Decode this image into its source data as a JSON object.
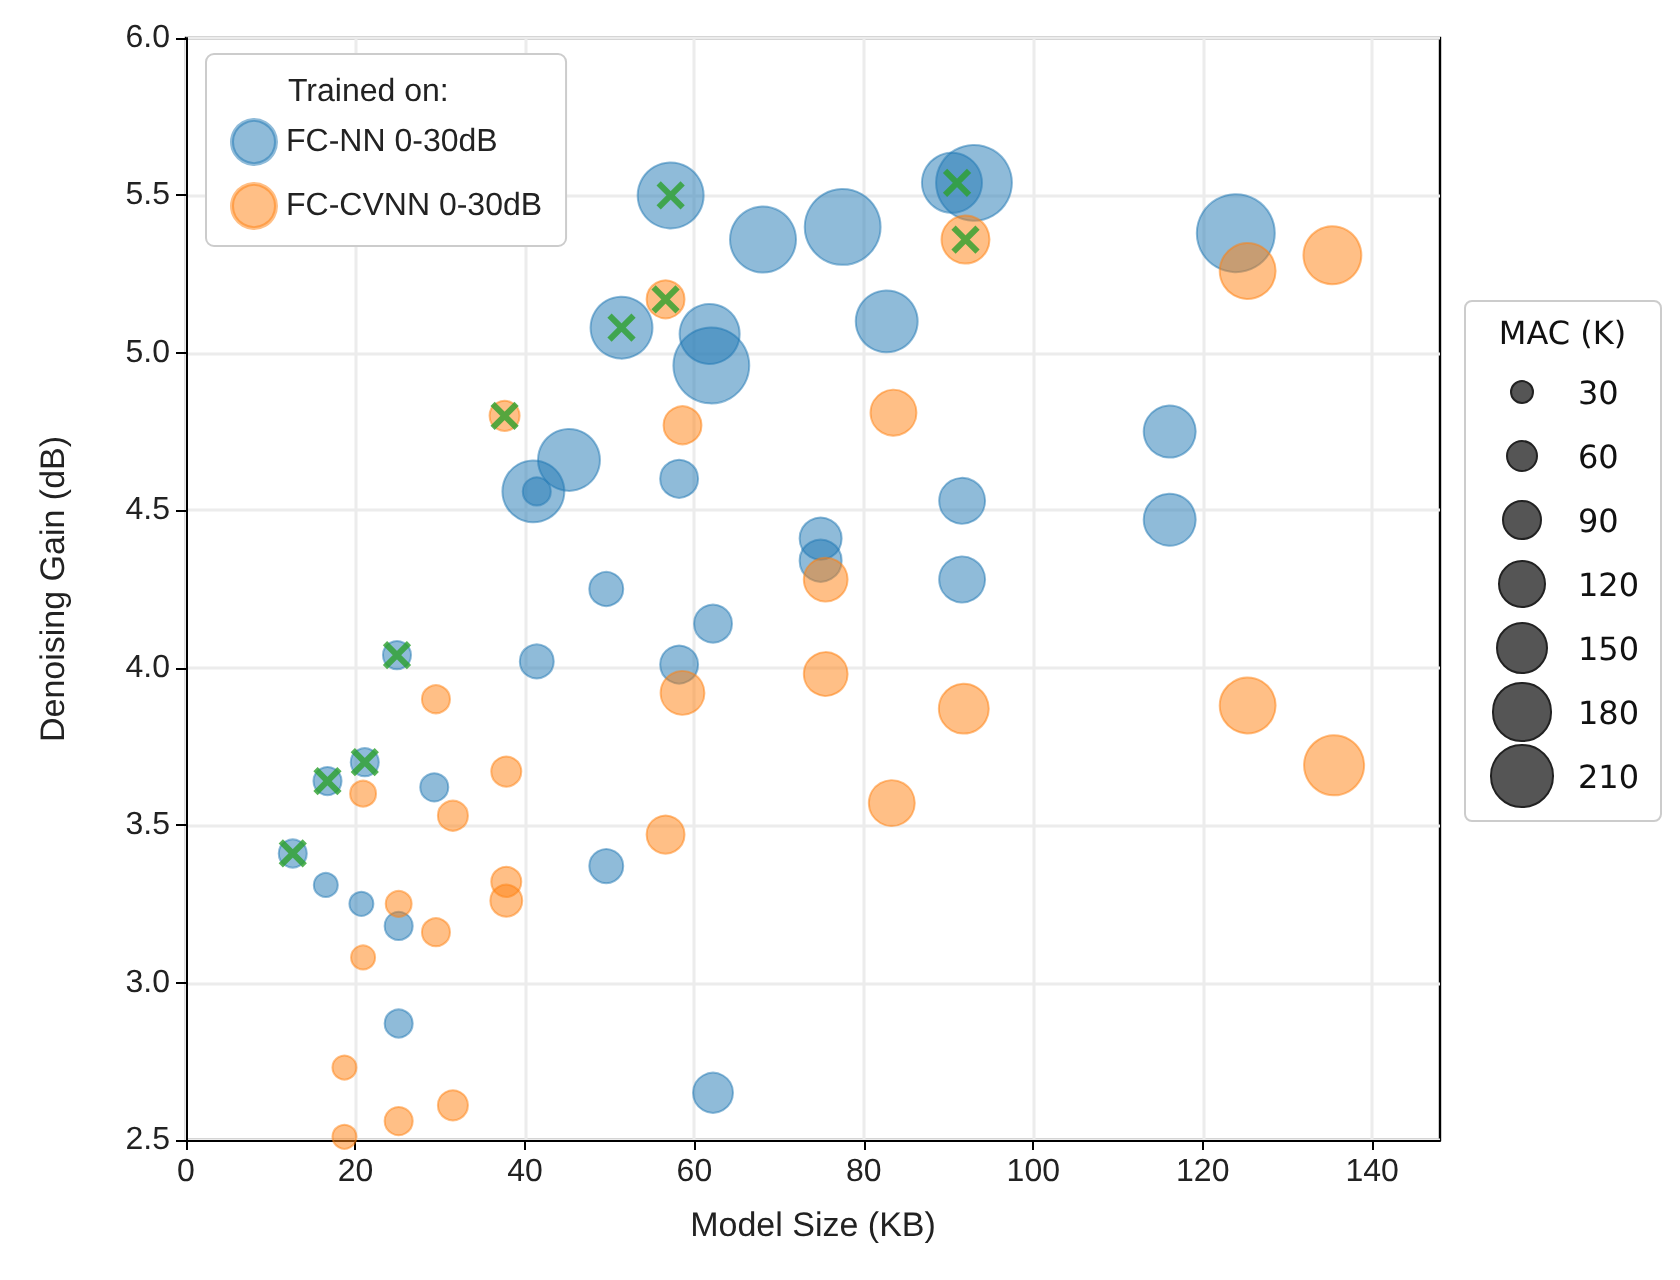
{
  "chart_data": {
    "type": "bubble",
    "xlabel": "Model Size (KB)",
    "ylabel": "Denoising Gain (dB)",
    "legend_title": "Trained on:",
    "annotations": [
      "MAC (K)"
    ],
    "xlim": [
      0,
      148
    ],
    "xticks": [
      0,
      20,
      40,
      60,
      80,
      100,
      120,
      140
    ],
    "ylim": [
      2.5,
      6.0
    ],
    "yticks": [
      2.5,
      {
        "value": 3,
        "label": "3.0"
      },
      3.5,
      {
        "value": 4,
        "label": "4.0"
      },
      4.5,
      {
        "value": 5,
        "label": "5.0"
      },
      5.5,
      {
        "value": 6,
        "label": "6.0"
      }
    ],
    "size_legend": [
      30,
      60,
      90,
      120,
      150,
      180,
      210
    ],
    "grid": true,
    "legend": "top left",
    "series": [
      {
        "name": "FC-NN 0-30dB",
        "color": "#1f77b4",
        "marker": "circle",
        "x": [
          57.2,
          51.4,
          61.8,
          62.0,
          68.1,
          77.5,
          82.7,
          90.4,
          93.0,
          123.9,
          116.1,
          116.1,
          91.6,
          91.6,
          74.9,
          74.9,
          58.2,
          45.2,
          41.0,
          41.4,
          62.2,
          58.2,
          49.6,
          41.4,
          49.6,
          29.3,
          24.9,
          16.7,
          21.1,
          12.6,
          16.5,
          20.7,
          25.1,
          25.1,
          62.2
        ],
        "values": [
          5.5,
          5.08,
          5.06,
          4.96,
          5.36,
          5.4,
          5.1,
          5.54,
          5.54,
          5.38,
          4.75,
          4.47,
          4.53,
          4.28,
          4.41,
          4.34,
          4.6,
          4.66,
          4.56,
          4.56,
          4.14,
          4.01,
          4.25,
          4.02,
          3.37,
          3.62,
          4.04,
          3.64,
          3.7,
          3.41,
          3.31,
          3.25,
          3.18,
          2.87,
          2.65
        ],
        "sizes": [
          227,
          200,
          188,
          300,
          227,
          300,
          200,
          188,
          300,
          317,
          141,
          141,
          110,
          110,
          92,
          92,
          75,
          200,
          200,
          41,
          75,
          75,
          60,
          60,
          60,
          41,
          41,
          41,
          41,
          41,
          30,
          30,
          41,
          41,
          83
        ]
      },
      {
        "name": "FC-CVNN 0-30dB",
        "color": "#ff7f0e",
        "marker": "circle",
        "x": [
          56.6,
          92.0,
          58.6,
          83.5,
          75.5,
          37.6,
          75.5,
          58.6,
          91.8,
          83.3,
          56.6,
          29.5,
          37.8,
          20.9,
          31.5,
          37.8,
          37.8,
          25.1,
          29.5,
          20.9,
          18.7,
          31.5,
          25.1,
          18.7,
          135.3,
          125.3,
          125.3,
          135.5
        ],
        "values": [
          5.17,
          5.36,
          4.77,
          4.81,
          4.28,
          4.8,
          3.98,
          3.92,
          3.87,
          3.57,
          3.47,
          3.9,
          3.67,
          3.6,
          3.53,
          3.32,
          3.26,
          3.25,
          3.16,
          3.08,
          2.73,
          2.61,
          2.56,
          2.51,
          5.31,
          5.26,
          3.88,
          3.69
        ],
        "sizes": [
          75,
          120,
          75,
          110,
          100,
          47,
          100,
          100,
          130,
          110,
          75,
          41,
          47,
          35,
          47,
          47,
          53,
          35,
          41,
          30,
          30,
          47,
          41,
          30,
          175,
          163,
          163,
          188
        ]
      },
      {
        "type": "scatter",
        "color": "#2ca02c",
        "marker": "cross",
        "x": [
          57.2,
          51.4,
          56.6,
          91.0,
          92.0,
          37.6,
          24.9,
          21.1,
          16.7,
          12.6
        ],
        "values": [
          5.5,
          5.08,
          5.17,
          5.54,
          5.36,
          4.8,
          4.04,
          3.7,
          3.64,
          3.41
        ]
      }
    ]
  }
}
